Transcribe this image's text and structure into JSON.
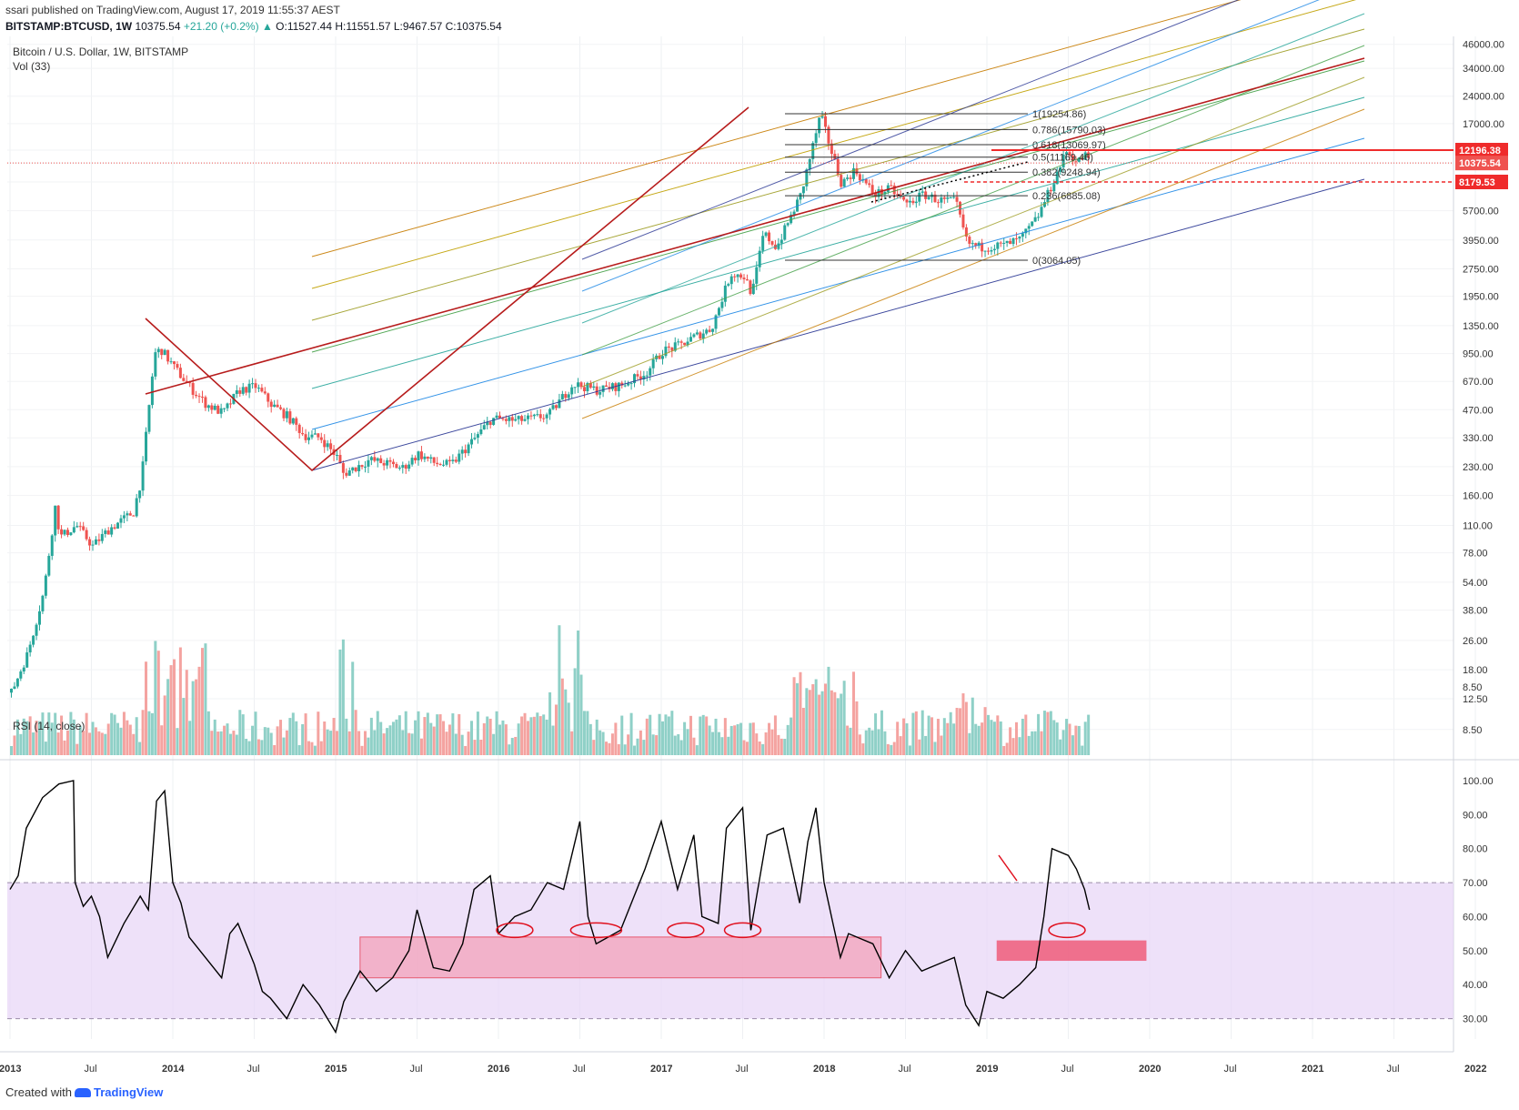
{
  "header": {
    "publisher_line": "ssari published on TradingView.com, August 17, 2019 11:55:37 AEST",
    "symbol": "BITSTAMP:BTCUSD, 1W",
    "last": "10375.54",
    "change": "+21.20 (+0.2%)",
    "arrow": "▲",
    "o": "O:11527.44",
    "h": "H:11551.57",
    "l": "L:9467.57",
    "c": "C:10375.54"
  },
  "pane_titles": {
    "main": "Bitcoin / U.S. Dollar, 1W, BITSTAMP",
    "vol": "Vol (33)",
    "rsi": "RSI (14, close)"
  },
  "footer": {
    "created_with": "Created with",
    "brand": "TradingView"
  },
  "colors": {
    "up": "#26a69a",
    "down": "#ef5350",
    "vol_up": "#8fd0c7",
    "vol_down": "#f4a3a0",
    "pitchfork": "#b71c1c",
    "rsi_band": "#e7d4f7",
    "rsi_zone": "#f4a7bf",
    "rsi_zone_dark": "#ee5c7a"
  },
  "chart_data": [
    {
      "type": "candlestick",
      "title": "Bitcoin / U.S. Dollar, 1W, BITSTAMP",
      "scale": "log",
      "x_tick_labels": [
        "2013",
        "Jul",
        "2014",
        "Jul",
        "2015",
        "Jul",
        "2016",
        "Jul",
        "2017",
        "Jul",
        "2018",
        "Jul",
        "2019",
        "Jul",
        "2020",
        "Jul",
        "2021",
        "Jul",
        "2022"
      ],
      "y_tick_labels": [
        "46000.00",
        "34000.00",
        "24000.00",
        "17000.00",
        "12196.38",
        "10375.54",
        "8179.53",
        "5700.00",
        "3950.00",
        "2750.00",
        "1950.00",
        "1350.00",
        "950.00",
        "670.00",
        "470.00",
        "330.00",
        "230.00",
        "160.00",
        "110.00",
        "78.00",
        "54.00",
        "38.00",
        "26.00",
        "18.00",
        "12.50",
        "8.50"
      ],
      "price_markers": [
        {
          "value": "12196.38",
          "style": "solid"
        },
        {
          "value": "10375.54",
          "style": "last"
        },
        {
          "value": "8179.53",
          "style": "dashed"
        }
      ],
      "fib_levels": [
        {
          "label": "1(19254.86)",
          "value": 19254.86
        },
        {
          "label": "0.786(15790.03)",
          "value": 15790.03
        },
        {
          "label": "0.618(13069.97)",
          "value": 13069.97
        },
        {
          "label": "0.5(11169.46)",
          "value": 11169.46
        },
        {
          "label": "0.382(9248.94)",
          "value": 9248.94
        },
        {
          "label": "0.236(6885.08)",
          "value": 6885.08
        },
        {
          "label": "0(3064.05)",
          "value": 3064.05
        }
      ],
      "price_path": [
        [
          2013.0,
          13.5
        ],
        [
          2013.1,
          22
        ],
        [
          2013.2,
          48
        ],
        [
          2013.27,
          140
        ],
        [
          2013.3,
          95
        ],
        [
          2013.4,
          110
        ],
        [
          2013.5,
          85
        ],
        [
          2013.6,
          105
        ],
        [
          2013.75,
          130
        ],
        [
          2013.8,
          200
        ],
        [
          2013.88,
          950
        ],
        [
          2013.92,
          1000
        ],
        [
          2014.0,
          800
        ],
        [
          2014.1,
          620
        ],
        [
          2014.2,
          500
        ],
        [
          2014.3,
          450
        ],
        [
          2014.4,
          600
        ],
        [
          2014.5,
          630
        ],
        [
          2014.6,
          500
        ],
        [
          2014.7,
          430
        ],
        [
          2014.8,
          340
        ],
        [
          2014.9,
          330
        ],
        [
          2015.0,
          260
        ],
        [
          2015.04,
          210
        ],
        [
          2015.2,
          250
        ],
        [
          2015.3,
          240
        ],
        [
          2015.4,
          225
        ],
        [
          2015.5,
          270
        ],
        [
          2015.6,
          240
        ],
        [
          2015.7,
          235
        ],
        [
          2015.85,
          330
        ],
        [
          2015.95,
          420
        ],
        [
          2016.1,
          410
        ],
        [
          2016.2,
          420
        ],
        [
          2016.3,
          440
        ],
        [
          2016.45,
          650
        ],
        [
          2016.6,
          600
        ],
        [
          2016.75,
          640
        ],
        [
          2016.9,
          750
        ],
        [
          2017.0,
          980
        ],
        [
          2017.1,
          1050
        ],
        [
          2017.2,
          1180
        ],
        [
          2017.3,
          1300
        ],
        [
          2017.42,
          2600
        ],
        [
          2017.5,
          2500
        ],
        [
          2017.55,
          2000
        ],
        [
          2017.62,
          4300
        ],
        [
          2017.7,
          3600
        ],
        [
          2017.85,
          7000
        ],
        [
          2017.97,
          19000
        ],
        [
          2018.05,
          11000
        ],
        [
          2018.1,
          8000
        ],
        [
          2018.18,
          9500
        ],
        [
          2018.3,
          7000
        ],
        [
          2018.4,
          7500
        ],
        [
          2018.5,
          6200
        ],
        [
          2018.6,
          7000
        ],
        [
          2018.7,
          6500
        ],
        [
          2018.8,
          6400
        ],
        [
          2018.87,
          3800
        ],
        [
          2018.95,
          3600
        ],
        [
          2019.1,
          3700
        ],
        [
          2019.2,
          4000
        ],
        [
          2019.3,
          5200
        ],
        [
          2019.4,
          8200
        ],
        [
          2019.48,
          12000
        ],
        [
          2019.55,
          10500
        ],
        [
          2019.6,
          11500
        ],
        [
          2019.63,
          10375.54
        ]
      ]
    },
    {
      "type": "bar",
      "title": "Vol (33)",
      "y_tick_labels": [
        "8.50"
      ]
    },
    {
      "type": "line",
      "title": "RSI (14, close)",
      "y_tick_labels": [
        "100.00",
        "90.00",
        "80.00",
        "70.00",
        "60.00",
        "50.00",
        "40.00",
        "30.00"
      ],
      "ylim": [
        24,
        104
      ],
      "band": [
        30,
        70
      ],
      "zones": [
        {
          "x": [
            2015.15,
            2018.35
          ],
          "y": [
            42,
            54
          ]
        },
        {
          "x": [
            2019.06,
            2019.98
          ],
          "y": [
            47,
            53
          ]
        }
      ],
      "x": [
        2013.0,
        2013.05,
        2013.1,
        2013.2,
        2013.3,
        2013.39,
        2013.4,
        2013.45,
        2013.5,
        2013.55,
        2013.6,
        2013.7,
        2013.8,
        2013.85,
        2013.9,
        2013.95,
        2014.0,
        2014.05,
        2014.1,
        2014.2,
        2014.3,
        2014.35,
        2014.4,
        2014.5,
        2014.55,
        2014.6,
        2014.7,
        2014.8,
        2014.9,
        2015.0,
        2015.05,
        2015.15,
        2015.25,
        2015.35,
        2015.45,
        2015.5,
        2015.6,
        2015.7,
        2015.78,
        2015.85,
        2015.95,
        2016.0,
        2016.1,
        2016.2,
        2016.3,
        2016.4,
        2016.5,
        2016.55,
        2016.6,
        2016.75,
        2016.9,
        2017.0,
        2017.1,
        2017.2,
        2017.25,
        2017.35,
        2017.4,
        2017.5,
        2017.55,
        2017.65,
        2017.75,
        2017.85,
        2017.9,
        2017.95,
        2018.0,
        2018.1,
        2018.15,
        2018.3,
        2018.4,
        2018.5,
        2018.6,
        2018.7,
        2018.8,
        2018.87,
        2018.95,
        2019.0,
        2019.1,
        2019.2,
        2019.3,
        2019.35,
        2019.4,
        2019.5,
        2019.55,
        2019.6,
        2019.63
      ],
      "values": [
        68,
        72,
        86,
        95,
        99,
        100,
        70,
        63,
        66,
        60,
        48,
        58,
        66,
        62,
        94,
        97,
        70,
        64,
        54,
        48,
        42,
        55,
        58,
        46,
        38,
        36,
        30,
        40,
        34,
        26,
        35,
        44,
        38,
        42,
        50,
        62,
        45,
        44,
        52,
        68,
        72,
        55,
        60,
        62,
        70,
        68,
        88,
        60,
        52,
        56,
        74,
        88,
        68,
        84,
        60,
        58,
        86,
        92,
        56,
        84,
        86,
        64,
        82,
        92,
        70,
        48,
        55,
        52,
        42,
        50,
        44,
        46,
        48,
        34,
        28,
        38,
        36,
        40,
        45,
        60,
        80,
        78,
        74,
        68,
        62
      ],
      "annotations": [
        "ellipse",
        "ellipse",
        "ellipse",
        "ellipse",
        "ellipse"
      ]
    }
  ]
}
